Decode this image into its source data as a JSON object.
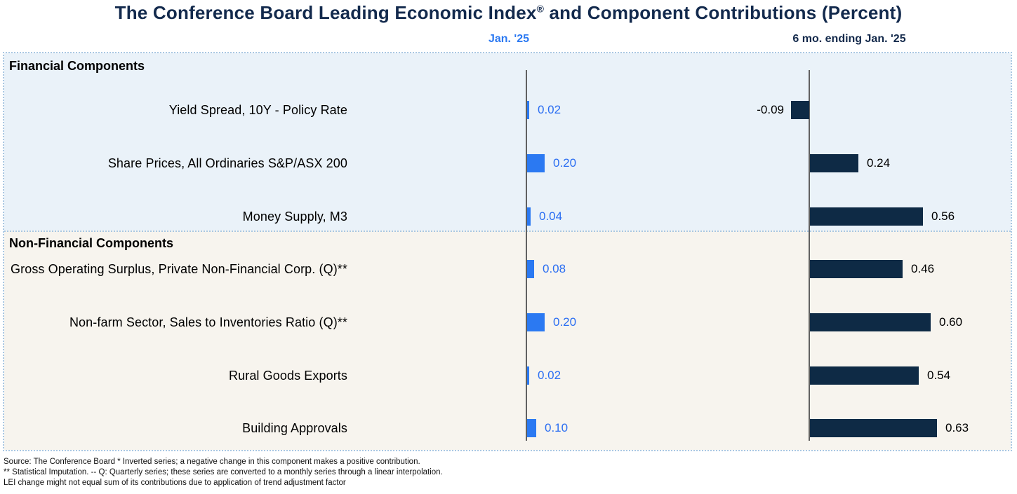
{
  "title": {
    "pre": "The Conference Board Leading Economic Index",
    "reg": "®",
    "post": " and Component Contributions (Percent)"
  },
  "columns": {
    "jan": "Jan. '25",
    "six": "6 mo. ending Jan. '25"
  },
  "colors": {
    "jan_bar": "#2b79f2",
    "six_bar": "#0e2a45",
    "financial_bg": "#eaf2f9",
    "nonfinancial_bg": "#f7f4ee",
    "title_navy": "#132a4d"
  },
  "sections": [
    {
      "label": "Financial Components",
      "rows": [
        {
          "label": "Yield Spread, 10Y - Policy Rate",
          "jan": 0.02,
          "jan_label": "0.02",
          "six": -0.09,
          "six_label": "-0.09"
        },
        {
          "label": "Share Prices, All Ordinaries S&P/ASX 200",
          "jan": 0.2,
          "jan_label": "0.20",
          "six": 0.24,
          "six_label": "0.24"
        },
        {
          "label": "Money Supply, M3",
          "jan": 0.04,
          "jan_label": "0.04",
          "six": 0.56,
          "six_label": "0.56"
        }
      ]
    },
    {
      "label": "Non-Financial Components",
      "rows": [
        {
          "label": "Gross Operating Surplus, Private Non-Financial Corp. (Q)**",
          "jan": 0.08,
          "jan_label": "0.08",
          "six": 0.46,
          "six_label": "0.46"
        },
        {
          "label": "Non-farm Sector, Sales to Inventories Ratio (Q)**",
          "jan": 0.2,
          "jan_label": "0.20",
          "six": 0.6,
          "six_label": "0.60"
        },
        {
          "label": "Rural Goods Exports",
          "jan": 0.02,
          "jan_label": "0.02",
          "six": 0.54,
          "six_label": "0.54"
        },
        {
          "label": "Building Approvals",
          "jan": 0.1,
          "jan_label": "0.10",
          "six": 0.63,
          "six_label": "0.63"
        }
      ]
    }
  ],
  "footnotes": [
    "Source: The Conference Board *  Inverted series; a negative change in this component makes a positive contribution.",
    "**  Statistical Imputation. -- Q: Quarterly series; these series are converted to a monthly series through a linear interpolation.",
    "LEI change might not equal sum of its contributions due to application of trend adjustment factor"
  ],
  "chart_data": {
    "type": "bar",
    "orientation": "horizontal",
    "title": "The Conference Board Leading Economic Index® and Component Contributions (Percent)",
    "categories": [
      "Yield Spread, 10Y - Policy Rate",
      "Share Prices, All Ordinaries S&P/ASX 200",
      "Money Supply, M3",
      "Gross Operating Surplus, Private Non-Financial Corp. (Q)**",
      "Non-farm Sector, Sales to Inventories Ratio (Q)**",
      "Rural Goods Exports",
      "Building Approvals"
    ],
    "category_groups": [
      {
        "name": "Financial Components",
        "indices": [
          0,
          1,
          2
        ]
      },
      {
        "name": "Non-Financial Components",
        "indices": [
          3,
          4,
          5,
          6
        ]
      }
    ],
    "series": [
      {
        "name": "Jan. '25",
        "color": "#2b79f2",
        "values": [
          0.02,
          0.2,
          0.04,
          0.08,
          0.2,
          0.02,
          0.1
        ]
      },
      {
        "name": "6 mo. ending Jan. '25",
        "color": "#0e2a45",
        "values": [
          -0.09,
          0.24,
          0.56,
          0.46,
          0.6,
          0.54,
          0.63
        ]
      }
    ],
    "value_labels_shown": true,
    "grid": false,
    "legend_position": "column-headers-top",
    "xlim_jan_panel": [
      0,
      0.25
    ],
    "xlim_six_panel": [
      -0.12,
      0.72
    ]
  }
}
